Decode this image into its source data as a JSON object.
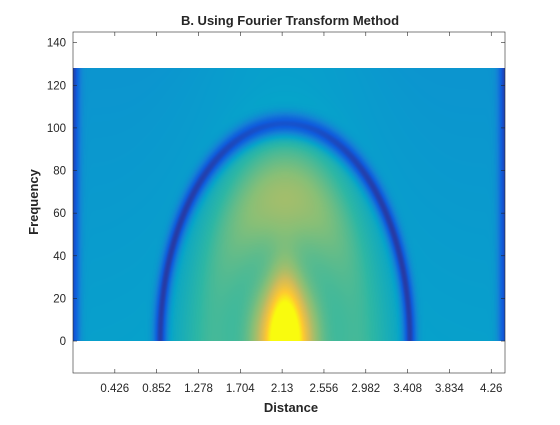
{
  "chart_data": {
    "type": "heatmap",
    "title": "B. Using Fourier Transform Method",
    "xlabel": "Distance",
    "ylabel": "Frequency",
    "xlim": [
      0,
      4.4
    ],
    "ylim": [
      -15,
      145
    ],
    "x_ticks": [
      0.426,
      0.852,
      1.278,
      1.704,
      2.13,
      2.556,
      2.982,
      3.408,
      3.834,
      4.26
    ],
    "x_tick_labels": [
      "0.426",
      "0.852",
      "1.278",
      "1.704",
      "2.13",
      "2.556",
      "2.982",
      "3.408",
      "3.834",
      "4.26"
    ],
    "y_ticks": [
      0,
      20,
      40,
      60,
      80,
      100,
      120,
      140
    ],
    "y_tick_labels": [
      "0",
      "20",
      "40",
      "60",
      "80",
      "100",
      "120",
      "140"
    ],
    "data_extent": {
      "x": [
        0,
        4.4
      ],
      "y": [
        0,
        128
      ]
    },
    "colormap": "parula",
    "colors": {
      "parula_stops": [
        "#352a87",
        "#0f5cdd",
        "#1481d6",
        "#06a4ca",
        "#2eb7a4",
        "#87bf77",
        "#d1bb59",
        "#fec832",
        "#f9fb0e"
      ]
    },
    "grid": false,
    "legend": "none"
  }
}
